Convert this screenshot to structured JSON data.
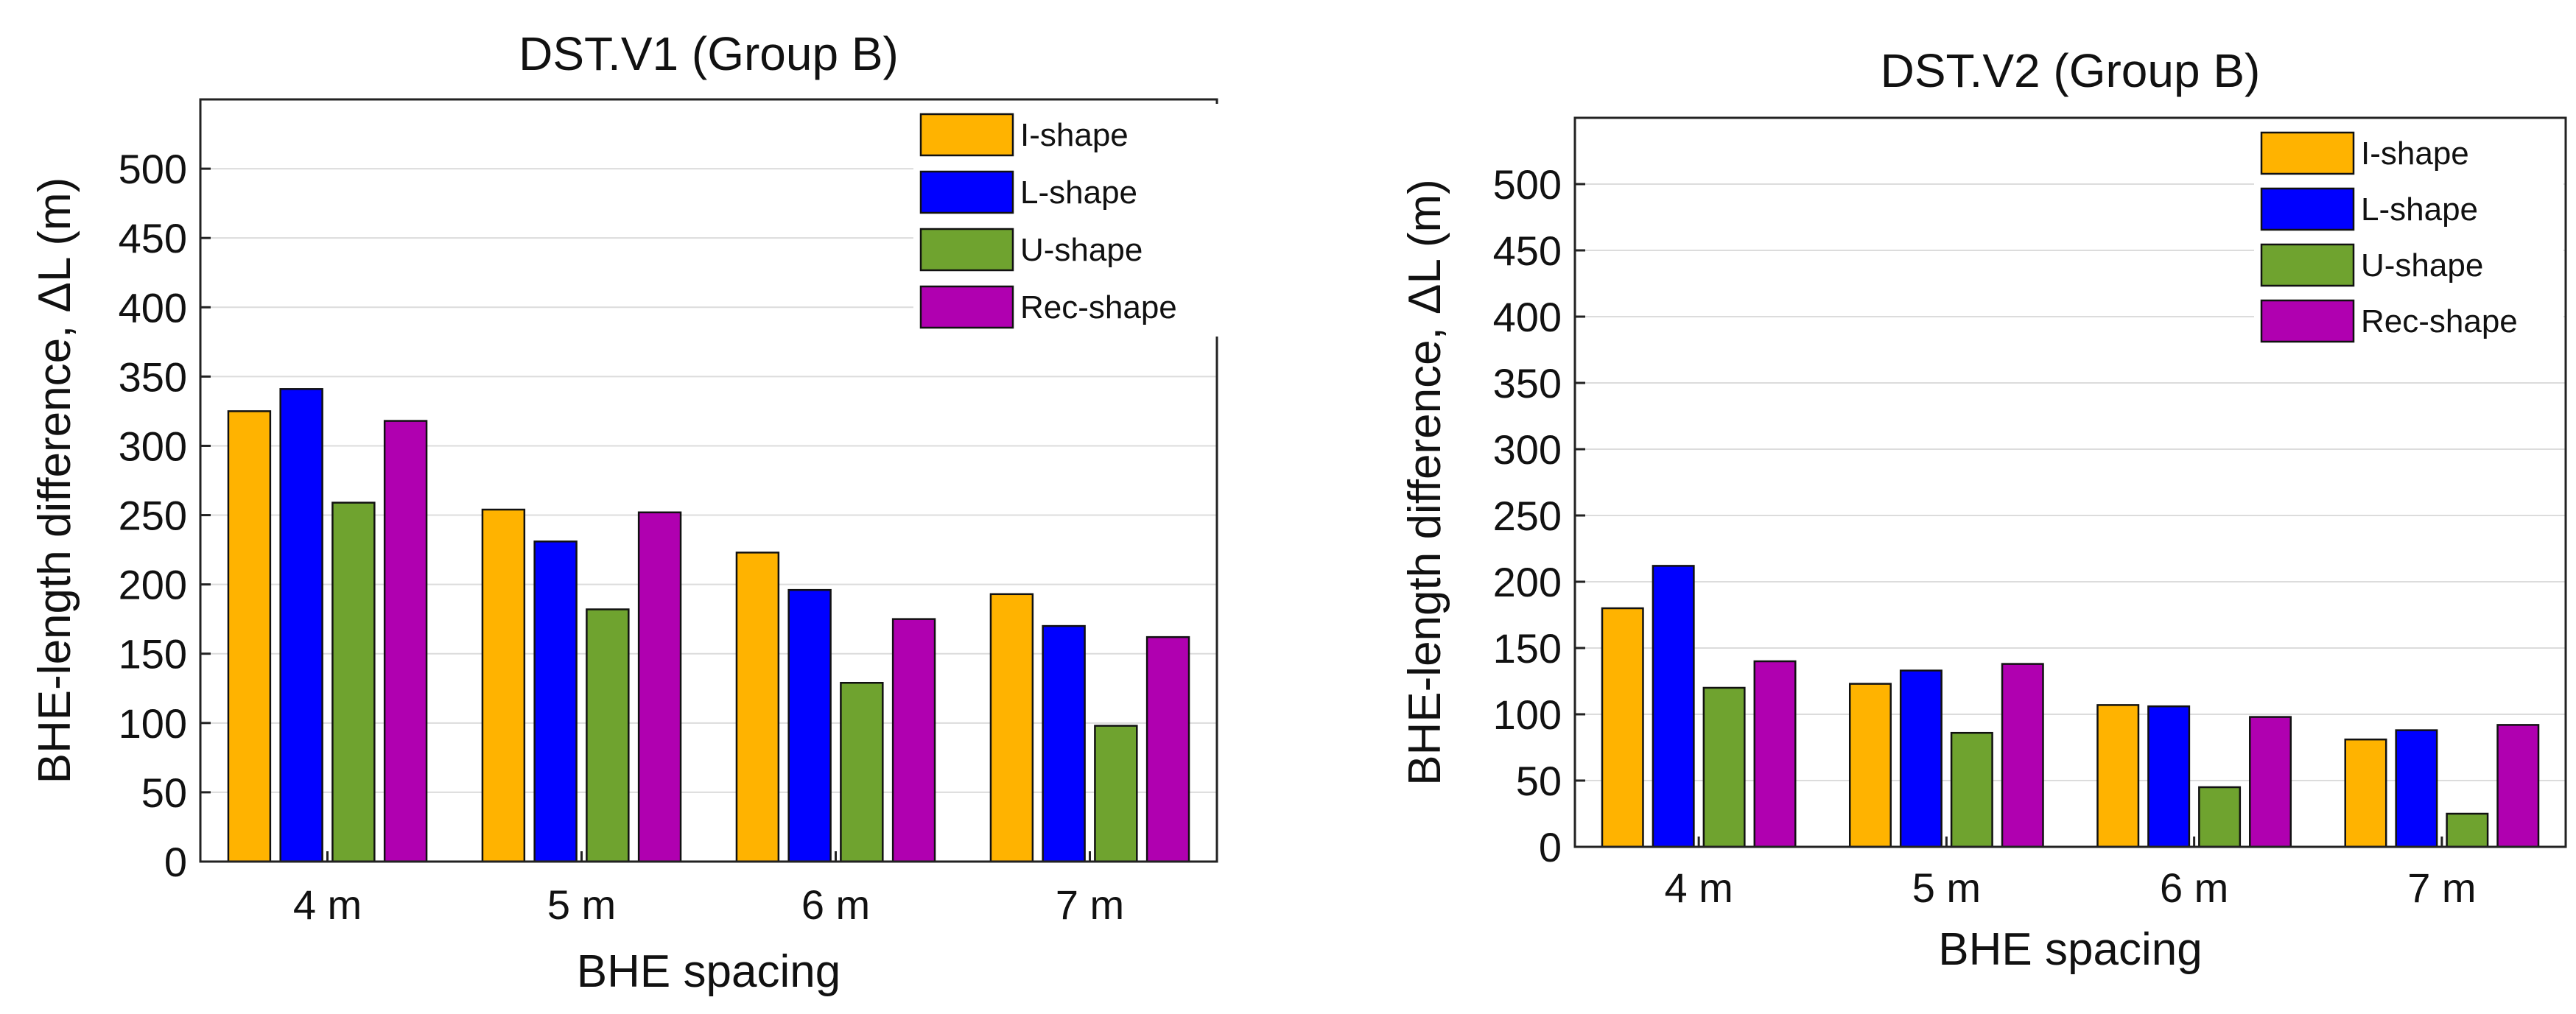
{
  "chart_data": [
    {
      "type": "bar",
      "title": "DST.V1 (Group B)",
      "xlabel": "BHE spacing",
      "ylabel": "BHE-length difference, ΔL (m)",
      "categories": [
        "4 m",
        "5 m",
        "6 m",
        "7 m"
      ],
      "ylim": [
        0,
        550
      ],
      "yticks": [
        0,
        50,
        100,
        150,
        200,
        250,
        300,
        350,
        400,
        450,
        500
      ],
      "grid": true,
      "legend_position": "top-right",
      "series": [
        {
          "name": "I-shape",
          "color": "#FFB300",
          "values": [
            325,
            254,
            223,
            193
          ]
        },
        {
          "name": "L-shape",
          "color": "#0000FF",
          "values": [
            341,
            231,
            196,
            170
          ]
        },
        {
          "name": "U-shape",
          "color": "#6FA32F",
          "values": [
            259,
            182,
            129,
            98
          ]
        },
        {
          "name": "Rec-shape",
          "color": "#B000B0",
          "values": [
            318,
            252,
            175,
            162
          ]
        }
      ]
    },
    {
      "type": "bar",
      "title": "DST.V2 (Group B)",
      "xlabel": "BHE spacing",
      "ylabel": "BHE-length difference, ΔL (m)",
      "categories": [
        "4 m",
        "5 m",
        "6 m",
        "7 m"
      ],
      "ylim": [
        0,
        550
      ],
      "yticks": [
        0,
        50,
        100,
        150,
        200,
        250,
        300,
        350,
        400,
        450,
        500
      ],
      "grid": true,
      "legend_position": "top-right",
      "series": [
        {
          "name": "I-shape",
          "color": "#FFB300",
          "values": [
            180,
            123,
            107,
            81
          ]
        },
        {
          "name": "L-shape",
          "color": "#0000FF",
          "values": [
            212,
            133,
            106,
            88
          ]
        },
        {
          "name": "U-shape",
          "color": "#6FA32F",
          "values": [
            120,
            86,
            45,
            25
          ]
        },
        {
          "name": "Rec-shape",
          "color": "#B000B0",
          "values": [
            140,
            138,
            98,
            92
          ]
        }
      ]
    }
  ]
}
